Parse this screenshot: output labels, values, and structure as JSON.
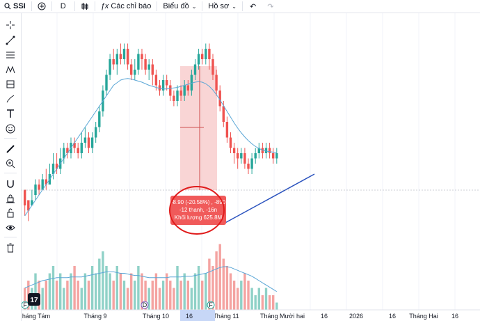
{
  "topbar": {
    "symbol": "SSI",
    "add_label": "⊕",
    "interval": "D",
    "indicators_label": "Các chỉ báo",
    "chart_type_label": "Biểu đồ",
    "profile_label": "Hồ sơ"
  },
  "sidebar": {
    "tools": [
      "crosshair-icon",
      "trendline-icon",
      "fib-icon",
      "pattern-icon",
      "projection-icon",
      "brush-icon",
      "text-icon",
      "emoji-icon",
      "ruler-icon",
      "zoom-in-icon",
      "magnet-icon",
      "lock-draw-icon",
      "unlock-icon",
      "eye-icon",
      "trash-icon"
    ]
  },
  "chart_data": {
    "type": "candlestick",
    "symbol": "SSI",
    "x_ticks": [
      "háng Tám",
      "Tháng 9",
      "Tháng 10",
      "16",
      "Tháng 11",
      "Tháng Mười hai",
      "16",
      "2026",
      "16",
      "Tháng Hai",
      "16"
    ],
    "highlighted_x_tick": "16",
    "event_markers": [
      "F",
      "D",
      "F"
    ],
    "measure_tooltip": {
      "line1": "-8.90 (-20.58%) , -890",
      "line2": "-12 thanh, -16n",
      "line3": "Khối lượng 625.8M"
    },
    "colors": {
      "up": "#26a69a",
      "down": "#ef5350",
      "ma": "#5aa6d6",
      "trend": "#2a52be",
      "measure": "#f7c3c3",
      "annotation": "#e01b1b"
    },
    "candles": [
      [
        33,
        30,
        32,
        28
      ],
      [
        31,
        29,
        30,
        27
      ],
      [
        30,
        31,
        33,
        30
      ],
      [
        32,
        34,
        35,
        31
      ],
      [
        34,
        33,
        35,
        32
      ],
      [
        33,
        35,
        36,
        33
      ],
      [
        35,
        34,
        37,
        33
      ],
      [
        34,
        36,
        38,
        34
      ],
      [
        36,
        38,
        40,
        35
      ],
      [
        38,
        37,
        40,
        36
      ],
      [
        37,
        39,
        41,
        36
      ],
      [
        39,
        41,
        42,
        38
      ],
      [
        41,
        40,
        42,
        39
      ],
      [
        40,
        42,
        43,
        39
      ],
      [
        42,
        41,
        43,
        40
      ],
      [
        41,
        40,
        42,
        39
      ],
      [
        40,
        42,
        44,
        39
      ],
      [
        42,
        43,
        45,
        41
      ],
      [
        43,
        41,
        44,
        40
      ],
      [
        41,
        43,
        44,
        40
      ],
      [
        43,
        45,
        46,
        42
      ],
      [
        45,
        48,
        49,
        44
      ],
      [
        48,
        52,
        53,
        47
      ],
      [
        52,
        55,
        56,
        51
      ],
      [
        55,
        58,
        59,
        54
      ],
      [
        58,
        57,
        60,
        56
      ],
      [
        57,
        59,
        60,
        55
      ],
      [
        59,
        58,
        61,
        57
      ],
      [
        58,
        60,
        61,
        57
      ],
      [
        60,
        57,
        61,
        56
      ],
      [
        57,
        55,
        58,
        54
      ],
      [
        55,
        56,
        58,
        54
      ],
      [
        56,
        59,
        60,
        55
      ],
      [
        59,
        58,
        60,
        56
      ],
      [
        58,
        56,
        59,
        55
      ],
      [
        56,
        57,
        58,
        54
      ],
      [
        57,
        55,
        58,
        53
      ],
      [
        55,
        53,
        56,
        52
      ],
      [
        53,
        52,
        54,
        51
      ],
      [
        52,
        54,
        55,
        51
      ],
      [
        54,
        53,
        55,
        52
      ],
      [
        53,
        51,
        54,
        50
      ],
      [
        51,
        50,
        52,
        49
      ],
      [
        50,
        52,
        53,
        49
      ],
      [
        52,
        51,
        53,
        50
      ],
      [
        51,
        53,
        54,
        50
      ],
      [
        53,
        52,
        54,
        51
      ],
      [
        52,
        55,
        56,
        51
      ],
      [
        55,
        57,
        58,
        54
      ],
      [
        57,
        59,
        60,
        56
      ],
      [
        59,
        58,
        60,
        57
      ],
      [
        58,
        60,
        61,
        57
      ],
      [
        60,
        58,
        61,
        56
      ],
      [
        58,
        55,
        59,
        54
      ],
      [
        55,
        52,
        56,
        51
      ],
      [
        52,
        49,
        53,
        48
      ],
      [
        49,
        46,
        50,
        45
      ],
      [
        46,
        43,
        47,
        42
      ],
      [
        43,
        41,
        44,
        40
      ],
      [
        41,
        40,
        42,
        38
      ],
      [
        40,
        39,
        41,
        37
      ],
      [
        39,
        40,
        41,
        38
      ],
      [
        40,
        38,
        41,
        37
      ],
      [
        38,
        37,
        39,
        36
      ],
      [
        37,
        39,
        40,
        36
      ],
      [
        39,
        40,
        41,
        38
      ],
      [
        40,
        41,
        42,
        39
      ],
      [
        41,
        40,
        42,
        39
      ],
      [
        40,
        41,
        42,
        39
      ],
      [
        41,
        40,
        42,
        39
      ],
      [
        40,
        39,
        41,
        38
      ],
      [
        39,
        40,
        41,
        38
      ]
    ],
    "volumes": [
      3,
      4,
      3,
      5,
      4,
      3,
      4,
      5,
      6,
      4,
      5,
      3,
      4,
      5,
      6,
      4,
      3,
      5,
      4,
      6,
      5,
      7,
      8,
      6,
      5,
      4,
      6,
      5,
      4,
      3,
      5,
      4,
      6,
      5,
      4,
      3,
      4,
      5,
      3,
      4,
      5,
      4,
      3,
      6,
      4,
      5,
      4,
      3,
      5,
      6,
      4,
      5,
      7,
      6,
      8,
      9,
      7,
      6,
      5,
      4,
      3,
      4,
      5,
      4,
      3,
      2,
      3,
      2,
      3,
      2,
      2,
      1
    ],
    "ma_values": [
      28,
      29,
      30,
      31,
      32,
      33,
      34,
      35,
      36,
      37,
      38,
      39,
      40,
      41,
      42,
      43,
      44,
      45,
      46,
      47,
      48,
      49,
      50,
      51,
      52,
      53,
      53.5,
      54,
      54.2,
      54.3,
      54.2,
      54,
      53.8,
      53.6,
      53.3,
      53,
      52.8,
      52.6,
      52.4,
      52.3,
      52.3,
      52.4,
      52.5,
      52.6,
      52.8,
      53,
      53.2,
      53.4,
      53.6,
      53.7,
      53.6,
      53.3,
      52.8,
      52.1,
      51.2,
      50.2,
      49.1,
      48,
      46.9,
      45.8,
      44.8,
      43.9,
      43.1,
      42.4,
      41.8,
      41.3,
      40.9,
      40.6,
      40.4,
      40.3,
      40.2,
      40.1
    ],
    "vol_ma": [
      3,
      3.2,
      3.4,
      3.6,
      3.8,
      4,
      4.1,
      4.2,
      4.3,
      4.4,
      4.4,
      4.4,
      4.4,
      4.5,
      4.5,
      4.5,
      4.5,
      4.6,
      4.7,
      4.8,
      4.9,
      5,
      5.1,
      5.2,
      5.2,
      5.2,
      5.1,
      5,
      5,
      4.9,
      4.8,
      4.7,
      4.7,
      4.6,
      4.5,
      4.4,
      4.4,
      4.4,
      4.4,
      4.4,
      4.4,
      4.5,
      4.5,
      4.5,
      4.5,
      4.6,
      4.6,
      4.6,
      4.7,
      4.8,
      4.9,
      5,
      5.2,
      5.4,
      5.6,
      5.8,
      5.9,
      5.9,
      5.8,
      5.6,
      5.4,
      5.2,
      5,
      4.8,
      4.6,
      4.3,
      4,
      3.7,
      3.4,
      3.1,
      2.8,
      2.5
    ]
  }
}
